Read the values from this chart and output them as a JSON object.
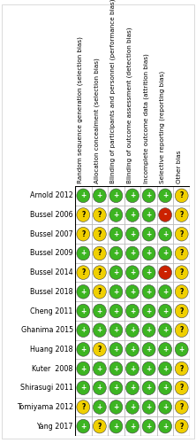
{
  "studies": [
    "Arnold 2012",
    "Bussel 2006",
    "Bussel 2007",
    "Bussel 2009",
    "Bussel 2014",
    "Bussel 2018",
    "Cheng 2011",
    "Ghanima 2015",
    "Huang 2018",
    "Kuter  2008",
    "Shirasugi 2011",
    "Tomiyama 2012",
    "Yang 2017"
  ],
  "columns": [
    "Random sequence generation (selection bias)",
    "Allocation concealment (selection bias)",
    "Blinding of participants and personnel (performance bias)",
    "Blinding of outcome assessment (detection bias)",
    "Incomplete outcome data (attrition bias)",
    "Selective reporting (reporting bias)",
    "Other bias"
  ],
  "ratings": [
    [
      "G",
      "G",
      "G",
      "G",
      "G",
      "G",
      "Y"
    ],
    [
      "Y",
      "Y",
      "G",
      "G",
      "G",
      "R",
      "Y"
    ],
    [
      "Y",
      "Y",
      "G",
      "G",
      "G",
      "G",
      "Y"
    ],
    [
      "G",
      "Y",
      "G",
      "G",
      "G",
      "G",
      "Y"
    ],
    [
      "Y",
      "Y",
      "G",
      "G",
      "G",
      "R",
      "Y"
    ],
    [
      "G",
      "Y",
      "G",
      "G",
      "G",
      "G",
      "Y"
    ],
    [
      "G",
      "G",
      "G",
      "G",
      "G",
      "G",
      "Y"
    ],
    [
      "G",
      "G",
      "G",
      "G",
      "G",
      "G",
      "Y"
    ],
    [
      "G",
      "Y",
      "G",
      "G",
      "G",
      "G",
      "G"
    ],
    [
      "G",
      "G",
      "G",
      "G",
      "G",
      "G",
      "Y"
    ],
    [
      "G",
      "G",
      "G",
      "G",
      "G",
      "G",
      "Y"
    ],
    [
      "Y",
      "G",
      "G",
      "G",
      "G",
      "G",
      "Y"
    ],
    [
      "G",
      "Y",
      "G",
      "G",
      "G",
      "G",
      "Y"
    ]
  ],
  "color_map": {
    "G": "#3cb521",
    "Y": "#f0d000",
    "R": "#cc2200"
  },
  "symbol_map": {
    "G": "+",
    "Y": "?",
    "R": "-"
  },
  "text_color_map": {
    "G": "#ffffff",
    "Y": "#000000",
    "R": "#ffffff"
  },
  "border_color": "#888888",
  "grid_color": "#aaaaaa",
  "bg_color": "#ffffff",
  "header_fontsize": 5.2,
  "study_fontsize": 5.8,
  "symbol_fontsize": 5.5,
  "fig_width": 2.22,
  "fig_height": 5.0,
  "dpi": 100
}
